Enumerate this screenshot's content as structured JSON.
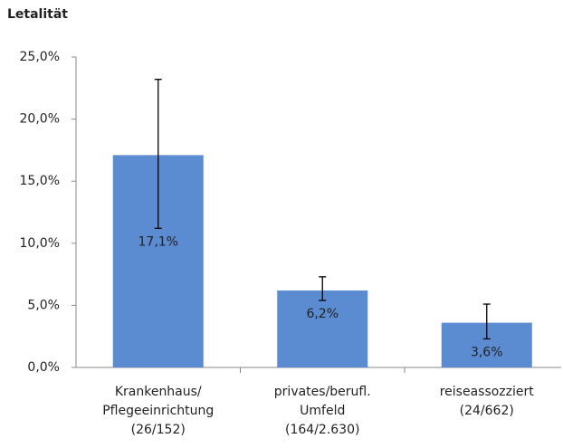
{
  "chart_data": {
    "type": "bar",
    "title": "Letalität",
    "categories": [
      "Krankenhaus/\nPflegeeinrichtung\n(26/152)",
      "privates/berufl.\nUmfeld\n(164/2.630)",
      "reiseassozziert\n(24/662)"
    ],
    "values": [
      17.1,
      6.2,
      3.6
    ],
    "value_labels": [
      "17,1%",
      "6,2%",
      "3,6%"
    ],
    "ci_low": [
      11.2,
      5.4,
      2.3
    ],
    "ci_high": [
      23.2,
      7.3,
      5.1
    ],
    "color": "#5b8bd0",
    "ylim": [
      0,
      25
    ],
    "yticks": [
      {
        "value": 0,
        "label": "0,0%"
      },
      {
        "value": 5,
        "label": "5,0%"
      },
      {
        "value": 10,
        "label": "10,0%"
      },
      {
        "value": 15,
        "label": "15,0%"
      },
      {
        "value": 20,
        "label": "20,0%"
      },
      {
        "value": 25,
        "label": "25,0%"
      }
    ],
    "grid": false
  }
}
